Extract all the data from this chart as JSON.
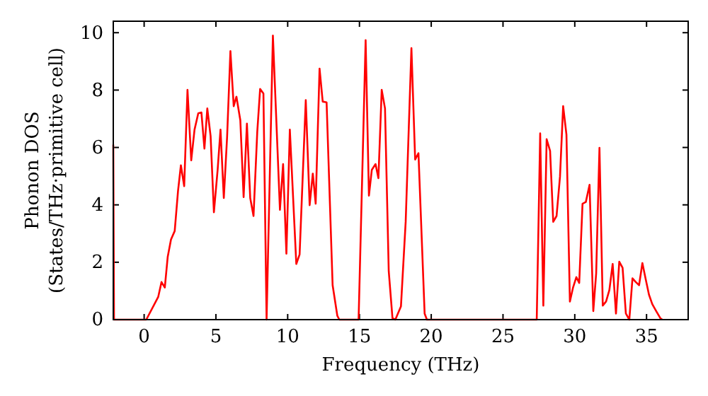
{
  "chart_data": {
    "type": "line",
    "xlabel": "Frequency (THz)",
    "ylabel": "Phonon DOS\n(States/THz·primitive cell)",
    "xlim": [
      -2.15,
      37.9
    ],
    "ylim": [
      0,
      10.4
    ],
    "xticks": [
      0,
      5,
      10,
      15,
      20,
      25,
      30,
      35
    ],
    "yticks": [
      0,
      2,
      4,
      6,
      8,
      10
    ],
    "grid": false,
    "marker": "none",
    "line_style": "solid",
    "series": [
      {
        "color": "#ff0000",
        "x": [
          -2.15,
          -2.1,
          0.15,
          0.98,
          1.21,
          1.44,
          1.64,
          1.87,
          2.13,
          2.36,
          2.56,
          2.79,
          3.02,
          3.28,
          3.51,
          3.77,
          3.99,
          4.2,
          4.4,
          4.63,
          4.86,
          5.12,
          5.32,
          5.55,
          5.78,
          6.01,
          6.24,
          6.43,
          6.7,
          6.93,
          7.16,
          7.39,
          7.62,
          7.88,
          8.08,
          8.31,
          8.53,
          8.97,
          9.46,
          9.68,
          9.91,
          10.15,
          10.6,
          10.83,
          11.26,
          11.53,
          11.75,
          11.95,
          12.22,
          12.44,
          12.71,
          13.13,
          13.46,
          13.6,
          14.94,
          15.43,
          15.66,
          15.86,
          16.12,
          16.32,
          16.55,
          16.78,
          17.04,
          17.3,
          17.5,
          17.89,
          18.22,
          18.62,
          18.88,
          19.11,
          19.54,
          19.7,
          27.35,
          27.59,
          27.81,
          28.04,
          28.28,
          28.5,
          28.73,
          28.97,
          29.19,
          29.42,
          29.66,
          29.88,
          30.11,
          30.31,
          30.54,
          30.77,
          31.03,
          31.29,
          31.49,
          31.72,
          31.95,
          32.18,
          32.41,
          32.64,
          32.87,
          33.1,
          33.33,
          33.56,
          33.8,
          34.02,
          34.25,
          34.48,
          34.71,
          34.94,
          35.17,
          35.4,
          35.67,
          35.96,
          36.1
        ],
        "values": [
          6.1,
          0,
          0,
          0.79,
          1.31,
          1.12,
          2.18,
          2.79,
          3.09,
          4.48,
          5.38,
          4.65,
          8.01,
          5.55,
          6.62,
          7.19,
          7.22,
          5.96,
          7.36,
          6.4,
          3.74,
          5.22,
          6.62,
          4.24,
          6.37,
          9.36,
          7.44,
          7.77,
          6.95,
          4.27,
          6.83,
          4.24,
          3.61,
          6.54,
          8.04,
          7.88,
          0,
          9.9,
          3.83,
          5.42,
          2.3,
          6.62,
          1.94,
          2.27,
          7.65,
          3.99,
          5.09,
          4.04,
          8.75,
          7.6,
          7.57,
          1.2,
          0.13,
          0,
          0,
          9.74,
          4.32,
          5.22,
          5.42,
          4.93,
          8.01,
          7.36,
          1.69,
          0.05,
          0,
          0.46,
          3.41,
          9.46,
          5.58,
          5.8,
          0.21,
          0,
          0,
          6.49,
          0.49,
          6.29,
          5.88,
          3.41,
          3.61,
          4.98,
          7.44,
          6.45,
          0.63,
          1.12,
          1.48,
          1.28,
          4.04,
          4.1,
          4.7,
          0.3,
          1.61,
          5.99,
          0.49,
          0.63,
          1.03,
          1.94,
          0.21,
          2.02,
          1.81,
          0.21,
          0,
          1.44,
          1.31,
          1.2,
          1.97,
          1.41,
          0.87,
          0.54,
          0.3,
          0.05,
          0
        ]
      }
    ]
  }
}
